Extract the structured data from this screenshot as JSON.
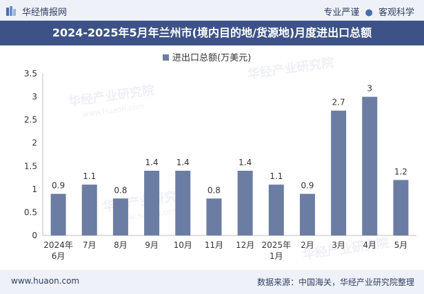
{
  "header": {
    "brand": "华经情报网",
    "tagline_left": "专业严谨",
    "tagline_right": "客观科学"
  },
  "footer": {
    "website": "www.huaon.com",
    "source": "数据来源：中国海关，华经产业研究院整理"
  },
  "watermark": {
    "text": "华经产业研究院",
    "url": "www.huaon.com"
  },
  "colors": {
    "bar": "#6b7da3",
    "title_bg": "#3d5387",
    "topbar_bg": "#eef1f7"
  },
  "chart_data": {
    "type": "bar",
    "title": "2024-2025年5月年兰州市(境内目的地/货源地)月度进出口总额",
    "legend": "进出口总额(万美元)",
    "legend_position": "top-center",
    "categories": [
      "2024年\n6月",
      "7月",
      "8月",
      "9月",
      "10月",
      "11月",
      "12月",
      "2025年\n1月",
      "2月",
      "3月",
      "4月",
      "5月"
    ],
    "series": [
      {
        "name": "进出口总额(万美元)",
        "values": [
          0.9,
          1.1,
          0.8,
          1.4,
          1.4,
          0.8,
          1.4,
          1.1,
          0.9,
          2.7,
          3,
          1.2
        ]
      }
    ],
    "data_labels": [
      "0.9",
      "1.1",
      "0.8",
      "1.4",
      "1.4",
      "0.8",
      "1.4",
      "1.1",
      "0.9",
      "2.7",
      "3",
      "1.2"
    ],
    "y_ticks": [
      "0",
      "0.5",
      "1",
      "1.5",
      "2",
      "2.5",
      "3",
      "3.5"
    ],
    "ylim": [
      0,
      3.5
    ],
    "grid": false
  }
}
